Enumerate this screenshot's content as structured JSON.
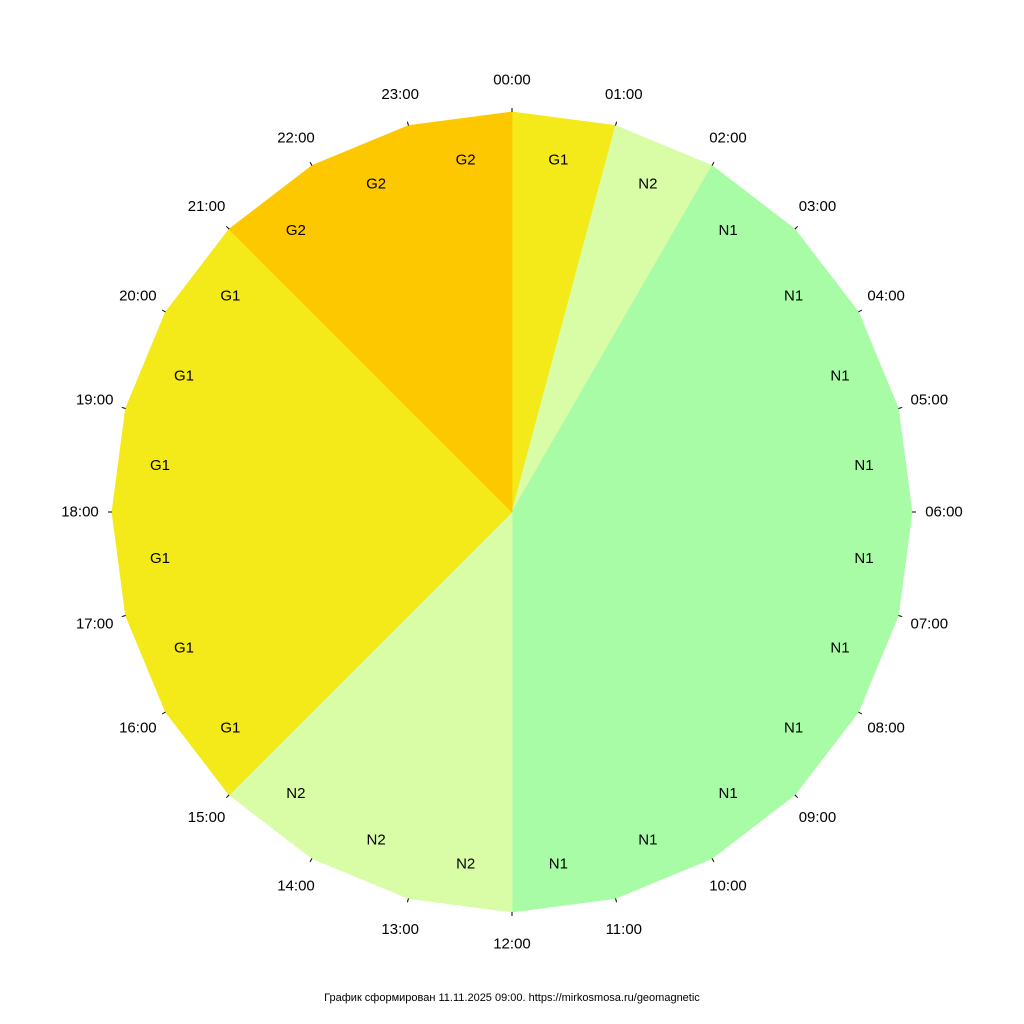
{
  "chart_data": {
    "type": "pie",
    "hours": [
      "00:00",
      "01:00",
      "02:00",
      "03:00",
      "04:00",
      "05:00",
      "06:00",
      "07:00",
      "08:00",
      "09:00",
      "10:00",
      "11:00",
      "12:00",
      "13:00",
      "14:00",
      "15:00",
      "16:00",
      "17:00",
      "18:00",
      "19:00",
      "20:00",
      "21:00",
      "22:00",
      "23:00"
    ],
    "segments": [
      {
        "start": "00:00",
        "level": "G1"
      },
      {
        "start": "01:00",
        "level": "N2"
      },
      {
        "start": "02:00",
        "level": "N1"
      },
      {
        "start": "03:00",
        "level": "N1"
      },
      {
        "start": "04:00",
        "level": "N1"
      },
      {
        "start": "05:00",
        "level": "N1"
      },
      {
        "start": "06:00",
        "level": "N1"
      },
      {
        "start": "07:00",
        "level": "N1"
      },
      {
        "start": "08:00",
        "level": "N1"
      },
      {
        "start": "09:00",
        "level": "N1"
      },
      {
        "start": "10:00",
        "level": "N1"
      },
      {
        "start": "11:00",
        "level": "N1"
      },
      {
        "start": "12:00",
        "level": "N2"
      },
      {
        "start": "13:00",
        "level": "N2"
      },
      {
        "start": "14:00",
        "level": "N2"
      },
      {
        "start": "15:00",
        "level": "G1"
      },
      {
        "start": "16:00",
        "level": "G1"
      },
      {
        "start": "17:00",
        "level": "G1"
      },
      {
        "start": "18:00",
        "level": "G1"
      },
      {
        "start": "19:00",
        "level": "G1"
      },
      {
        "start": "20:00",
        "level": "G1"
      },
      {
        "start": "21:00",
        "level": "G2"
      },
      {
        "start": "22:00",
        "level": "G2"
      },
      {
        "start": "23:00",
        "level": "G2"
      }
    ],
    "level_colors": {
      "N1": "#a8fca6",
      "N2": "#d9fca6",
      "G1": "#f4ea1a",
      "G2": "#fec800"
    }
  },
  "footer": {
    "text": "График сформирован 11.11.2025 09:00. https://mirkosmosa.ru/geomagnetic"
  }
}
